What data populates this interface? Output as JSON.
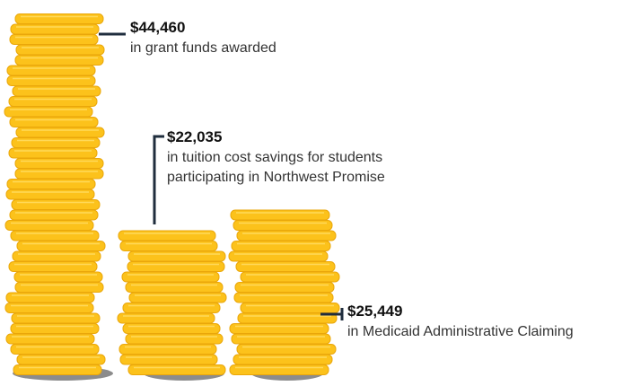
{
  "items": [
    {
      "amount": "$44,460",
      "description": [
        "in grant funds awarded"
      ]
    },
    {
      "amount": "$22,035",
      "description": [
        "in tuition cost savings for students",
        "participating in Northwest Promise"
      ]
    },
    {
      "amount": "$25,449",
      "description": [
        "in Medicaid Administrative Claiming"
      ]
    }
  ]
}
